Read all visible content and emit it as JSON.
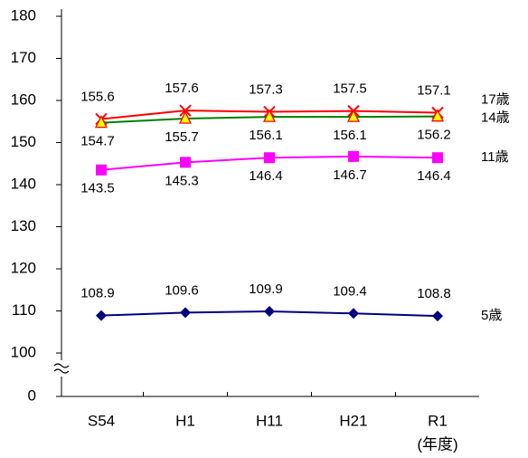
{
  "chart_data": {
    "type": "line",
    "categories": [
      "S54",
      "H1",
      "H11",
      "H21",
      "R1"
    ],
    "x_label": "(年度)",
    "ylim": [
      0,
      180
    ],
    "yticks": [
      0,
      100,
      110,
      120,
      130,
      140,
      150,
      160,
      170,
      180
    ],
    "y_break": [
      0,
      100
    ],
    "series": [
      {
        "name": "17歳",
        "color": "#ff0000",
        "marker": "x",
        "marker_fill": "#ff0000",
        "label_side": "above",
        "values": [
          155.6,
          157.6,
          157.3,
          157.5,
          157.1
        ]
      },
      {
        "name": "14歳",
        "color": "#008000",
        "marker": "triangle",
        "marker_fill": "#ffff00",
        "marker_stroke": "#ff0000",
        "label_side": "below",
        "values": [
          154.7,
          155.7,
          156.1,
          156.1,
          156.2
        ]
      },
      {
        "name": "11歳",
        "color": "#ff00ff",
        "marker": "square",
        "marker_fill": "#ff00ff",
        "label_side": "below",
        "values": [
          143.5,
          145.3,
          146.4,
          146.7,
          146.4
        ]
      },
      {
        "name": "5歳",
        "color": "#000080",
        "marker": "diamond",
        "marker_fill": "#000080",
        "label_side": "above",
        "values": [
          108.9,
          109.6,
          109.9,
          109.4,
          108.8
        ]
      }
    ]
  }
}
